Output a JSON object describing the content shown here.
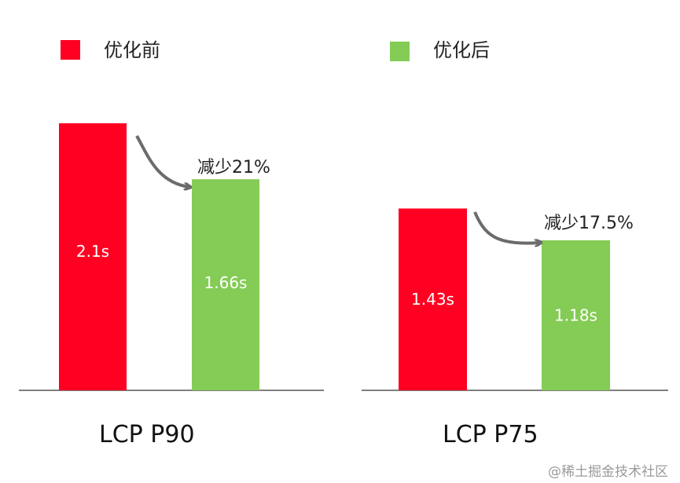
{
  "chart_data": {
    "type": "bar",
    "categories": [
      "LCP P90",
      "LCP P75"
    ],
    "series": [
      {
        "name": "优化前",
        "color": "#ff0022",
        "values": [
          2.1,
          1.43
        ],
        "labels": [
          "2.1s",
          "1.43s"
        ]
      },
      {
        "name": "优化后",
        "color": "#84cc55",
        "values": [
          1.66,
          1.18
        ],
        "labels": [
          "1.66s",
          "1.18s"
        ]
      }
    ],
    "annotations": [
      "减少21%",
      "减少17.5%"
    ],
    "ylim": [
      0,
      2.1
    ],
    "grid": false,
    "legend_position": "top",
    "arrow_color": "#6b6b6b",
    "axis_color": "#555555"
  },
  "watermark": "@稀土掘金技术社区"
}
